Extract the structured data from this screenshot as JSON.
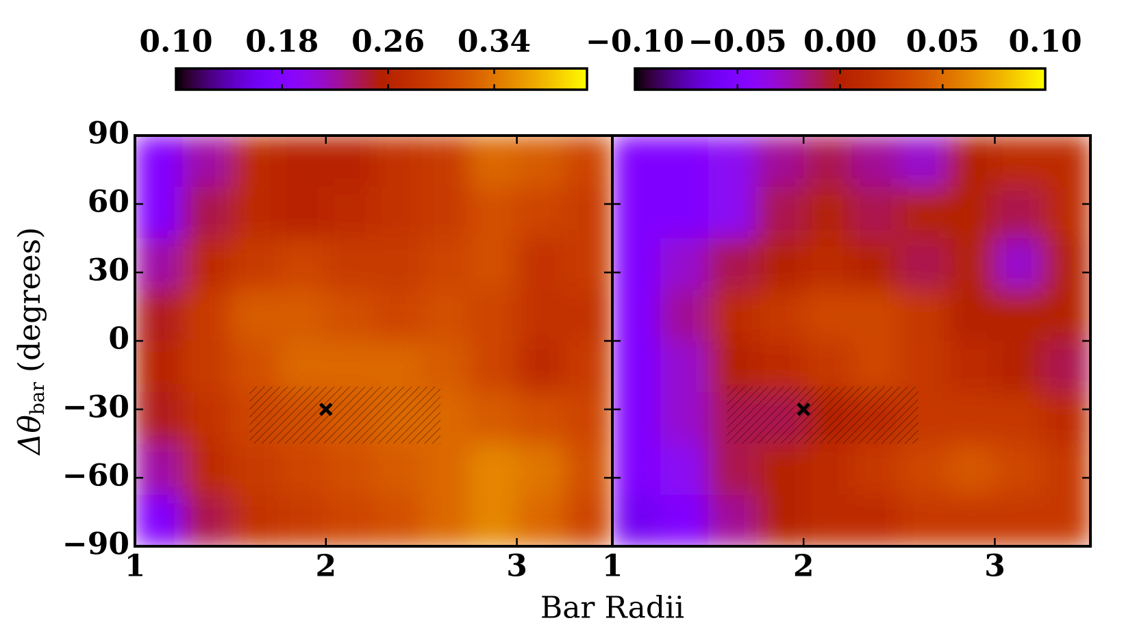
{
  "chart_data": [
    {
      "type": "heatmap",
      "colormap": "gnuplot",
      "xlabel": "Bar Radii",
      "ylabel": "Δθ",
      "ylabel_subscript": "bar",
      "ylabel_unit": "(degrees)",
      "xlim": [
        1,
        3.5
      ],
      "ylim": [
        -90,
        90
      ],
      "xticks": [
        1,
        2,
        3
      ],
      "yticks": [
        90,
        60,
        30,
        0,
        {
          "value": -30,
          "label": "−30"
        },
        {
          "value": -60,
          "label": "−60"
        },
        {
          "value": -90,
          "label": "−90"
        }
      ],
      "x": [
        1.125,
        1.375,
        1.625,
        1.875,
        2.125,
        2.375,
        2.625,
        2.875,
        3.125,
        3.375
      ],
      "y": [
        78.75,
        56.25,
        33.75,
        11.25,
        -11.25,
        -33.75,
        -56.25,
        -78.75
      ],
      "z": [
        [
          0.18,
          0.22,
          0.27,
          0.26,
          0.26,
          0.28,
          0.29,
          0.33,
          0.32,
          0.3
        ],
        [
          0.18,
          0.24,
          0.27,
          0.26,
          0.27,
          0.28,
          0.29,
          0.31,
          0.3,
          0.29
        ],
        [
          0.22,
          0.27,
          0.29,
          0.3,
          0.29,
          0.29,
          0.3,
          0.31,
          0.28,
          0.29
        ],
        [
          0.25,
          0.29,
          0.32,
          0.32,
          0.31,
          0.3,
          0.31,
          0.3,
          0.28,
          0.28
        ],
        [
          0.26,
          0.29,
          0.31,
          0.33,
          0.33,
          0.33,
          0.32,
          0.3,
          0.27,
          0.29
        ],
        [
          0.25,
          0.28,
          0.3,
          0.31,
          0.32,
          0.33,
          0.33,
          0.32,
          0.31,
          0.3
        ],
        [
          0.22,
          0.27,
          0.29,
          0.3,
          0.31,
          0.32,
          0.33,
          0.35,
          0.34,
          0.31
        ],
        [
          0.18,
          0.24,
          0.28,
          0.29,
          0.3,
          0.31,
          0.33,
          0.35,
          0.33,
          0.3
        ]
      ],
      "region": {
        "x": [
          1.6,
          2.6
        ],
        "y": [
          -45,
          -20
        ]
      },
      "marker": {
        "x": 2,
        "y": -30
      },
      "colorbar": {
        "lim": [
          0.1,
          0.41
        ],
        "ticks": [
          {
            "value": 0.1,
            "label": "0.10"
          },
          0.18,
          0.26,
          0.34
        ]
      }
    },
    {
      "type": "heatmap",
      "colormap": "gnuplot",
      "xlim": [
        1,
        3.5
      ],
      "ylim": [
        -90,
        90
      ],
      "xticks": [
        1,
        2,
        3
      ],
      "yticks": [
        90,
        60,
        30,
        0,
        -30,
        -60,
        -90
      ],
      "x": [
        1.125,
        1.375,
        1.625,
        1.875,
        2.125,
        2.375,
        2.625,
        2.875,
        3.125,
        3.375
      ],
      "y": [
        78.75,
        56.25,
        33.75,
        11.25,
        -11.25,
        -33.75,
        -56.25,
        -78.75
      ],
      "z": [
        [
          -0.05,
          -0.05,
          -0.04,
          -0.02,
          -0.01,
          -0.02,
          -0.03,
          0.0,
          0.01,
          0.01
        ],
        [
          -0.05,
          -0.05,
          -0.04,
          -0.01,
          0.0,
          -0.01,
          0.0,
          0.0,
          -0.01,
          0.01
        ],
        [
          -0.05,
          -0.03,
          -0.01,
          0.0,
          0.01,
          0.0,
          -0.01,
          0.0,
          -0.03,
          0.0
        ],
        [
          -0.05,
          -0.02,
          0.01,
          0.02,
          0.03,
          0.03,
          0.02,
          0.0,
          0.0,
          0.0
        ],
        [
          -0.05,
          -0.03,
          0.0,
          0.01,
          0.02,
          0.03,
          0.02,
          0.01,
          0.0,
          -0.01
        ],
        [
          -0.05,
          -0.03,
          -0.01,
          -0.01,
          0.0,
          0.01,
          0.02,
          0.02,
          0.02,
          0.01
        ],
        [
          -0.05,
          -0.04,
          -0.01,
          0.0,
          0.01,
          0.02,
          0.03,
          0.04,
          0.03,
          0.02
        ],
        [
          -0.06,
          -0.05,
          -0.02,
          0.0,
          0.01,
          0.01,
          0.02,
          0.02,
          0.02,
          0.02
        ]
      ],
      "region": {
        "x": [
          1.6,
          2.6
        ],
        "y": [
          -45,
          -20
        ]
      },
      "marker": {
        "x": 2,
        "y": -30
      },
      "colorbar": {
        "lim": [
          -0.1,
          0.1
        ],
        "ticks": [
          {
            "value": -0.1,
            "label": "−0.10"
          },
          {
            "value": -0.05,
            "label": "−0.05"
          },
          {
            "value": 0,
            "label": "0.00"
          },
          {
            "value": 0.05,
            "label": "0.05"
          },
          {
            "value": 0.1,
            "label": "0.10"
          }
        ]
      }
    }
  ]
}
